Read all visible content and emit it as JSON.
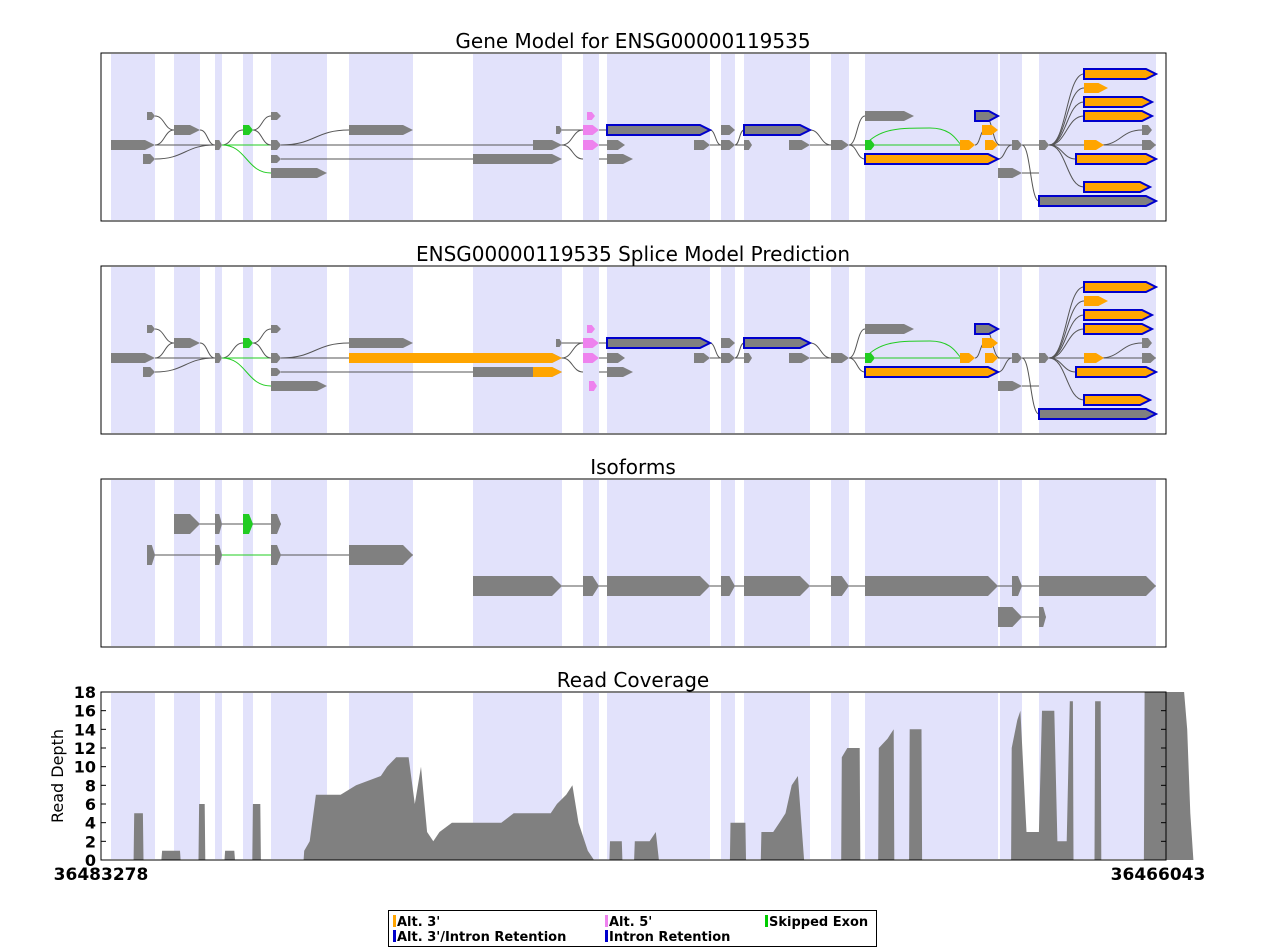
{
  "figure": {
    "legend": {
      "items": [
        {
          "label": "Alt. 3'",
          "color": "#ffa500"
        },
        {
          "label": "Alt. 5'",
          "color": "#ee82ee"
        },
        {
          "label": "Skipped Exon",
          "color": "#00cc00"
        },
        {
          "label": "Alt. 3'/Intron Retention",
          "color": "#0000cc"
        },
        {
          "label": "Intron Retention",
          "color": "#0000cc"
        }
      ]
    }
  },
  "chart_data": [
    {
      "type": "gene-model",
      "title": "Gene Model for ENSG00000119535",
      "xlim": [
        36483278,
        36466043
      ],
      "colors": {
        "exon_band": "#e2e2fb",
        "node": "#808080",
        "alt3": "#ffa500",
        "alt5": "#ee82ee",
        "skipped": "#22cc22",
        "retention_edge": "#0000cc",
        "edge": "#555555"
      }
    },
    {
      "type": "gene-model",
      "title": "ENSG00000119535 Splice Model Prediction",
      "xlim": [
        36483278,
        36466043
      ]
    },
    {
      "type": "isoforms",
      "title": "Isoforms",
      "xlim": [
        36483278,
        36466043
      ]
    },
    {
      "type": "area",
      "title": "Read Coverage",
      "ylabel": "Read Depth",
      "ylim": [
        0,
        18
      ],
      "yticks": [
        "0",
        "2",
        "4",
        "6",
        "8",
        "10",
        "12",
        "14",
        "16",
        "18"
      ],
      "xticks": [
        "36483278",
        "36466043"
      ],
      "fill_color": "#808080",
      "series": [
        {
          "points": [
            [
              36482750,
              0
            ],
            [
              36482740,
              5
            ],
            [
              36482600,
              5
            ],
            [
              36482590,
              0
            ],
            [
              36482300,
              0
            ],
            [
              36482290,
              1
            ],
            [
              36482000,
              1
            ],
            [
              36481990,
              0
            ],
            [
              36481700,
              0
            ],
            [
              36481690,
              6
            ],
            [
              36481600,
              6
            ],
            [
              36481590,
              0
            ],
            [
              36481280,
              0
            ],
            [
              36481270,
              1
            ],
            [
              36481120,
              1
            ],
            [
              36481110,
              0
            ],
            [
              36480830,
              0
            ],
            [
              36480820,
              6
            ],
            [
              36480700,
              6
            ],
            [
              36480690,
              0
            ],
            [
              36480000,
              0
            ],
            [
              36479990,
              1
            ],
            [
              36479900,
              2
            ],
            [
              36479800,
              7
            ],
            [
              36479400,
              7
            ],
            [
              36479150,
              8
            ],
            [
              36478750,
              9
            ],
            [
              36478650,
              10
            ],
            [
              36478500,
              11
            ],
            [
              36478300,
              11
            ],
            [
              36478200,
              6
            ],
            [
              36478100,
              10
            ],
            [
              36478000,
              3
            ],
            [
              36477900,
              2
            ],
            [
              36477800,
              3
            ],
            [
              36477600,
              4
            ],
            [
              36476800,
              4
            ],
            [
              36476600,
              5
            ],
            [
              36476000,
              5
            ],
            [
              36475900,
              6
            ],
            [
              36475750,
              7
            ],
            [
              36475650,
              8
            ],
            [
              36475550,
              4
            ],
            [
              36475400,
              1
            ],
            [
              36475300,
              0
            ],
            [
              36475050,
              0
            ],
            [
              36475040,
              2
            ],
            [
              36474850,
              2
            ],
            [
              36474840,
              0
            ],
            [
              36474650,
              0
            ],
            [
              36474640,
              2
            ],
            [
              36474400,
              2
            ],
            [
              36474300,
              3
            ],
            [
              36474250,
              0
            ],
            [
              36473100,
              0
            ],
            [
              36473090,
              4
            ],
            [
              36472850,
              4
            ],
            [
              36472840,
              0
            ],
            [
              36472600,
              0
            ],
            [
              36472590,
              3
            ],
            [
              36472400,
              3
            ],
            [
              36472300,
              4
            ],
            [
              36472200,
              5
            ],
            [
              36472100,
              8
            ],
            [
              36472000,
              9
            ],
            [
              36471900,
              0
            ],
            [
              36471300,
              0
            ],
            [
              36471290,
              11
            ],
            [
              36471200,
              12
            ],
            [
              36471000,
              12
            ],
            [
              36470990,
              0
            ],
            [
              36470700,
              0
            ],
            [
              36470690,
              12
            ],
            [
              36470550,
              13
            ],
            [
              36470450,
              14
            ],
            [
              36470440,
              0
            ],
            [
              36470200,
              0
            ],
            [
              36470190,
              14
            ],
            [
              36470000,
              14
            ],
            [
              36469990,
              0
            ],
            [
              36468550,
              0
            ],
            [
              36468540,
              12
            ],
            [
              36468450,
              15
            ],
            [
              36468400,
              16
            ],
            [
              36468300,
              3
            ],
            [
              36468100,
              3
            ],
            [
              36468050,
              16
            ],
            [
              36467850,
              16
            ],
            [
              36467800,
              2
            ],
            [
              36467650,
              2
            ],
            [
              36467600,
              17
            ],
            [
              36467550,
              17
            ],
            [
              36467540,
              0
            ],
            [
              36467200,
              0
            ],
            [
              36467190,
              17
            ],
            [
              36467100,
              17
            ],
            [
              36467090,
              0
            ],
            [
              36466400,
              0
            ],
            [
              36466390,
              18
            ],
            [
              36465750,
              18
            ],
            [
              36465700,
              14
            ],
            [
              36465650,
              5
            ],
            [
              36465600,
              0
            ]
          ]
        }
      ]
    }
  ]
}
